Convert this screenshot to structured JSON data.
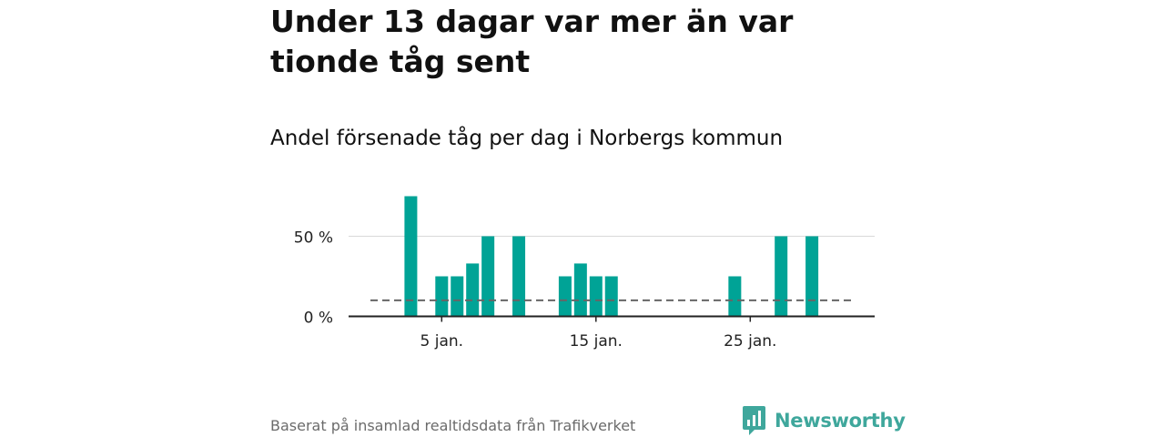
{
  "title": "Under 13 dagar var mer än var tionde tåg sent",
  "subtitle": "Andel försenade tåg per dag i Norbergs kommun",
  "source": "Baserat på insamlad realtidsdata från Trafikverket",
  "brand": {
    "name": "Newsworthy",
    "color": "#3fa79c",
    "icon": "newsworthy-logo-icon"
  },
  "chart_data": {
    "type": "bar",
    "x_unit": "day of January",
    "x": [
      3,
      5,
      6,
      7,
      8,
      10,
      13,
      14,
      15,
      16,
      24,
      27,
      29
    ],
    "values": [
      75,
      25,
      25,
      33,
      50,
      50,
      25,
      33,
      25,
      25,
      25,
      50,
      50
    ],
    "bar_color": "#00a396",
    "reference_line": {
      "value": 10,
      "style": "dashed",
      "color": "#666666"
    },
    "ylim": [
      0,
      75
    ],
    "y_ticks": [
      {
        "value": 0,
        "label": "0 %"
      },
      {
        "value": 50,
        "label": "50 %"
      }
    ],
    "x_ticks": [
      {
        "value": 5,
        "label": "5 jan."
      },
      {
        "value": 15,
        "label": "15 jan."
      },
      {
        "value": 25,
        "label": "25 jan."
      }
    ],
    "grid": "horizontal",
    "xlabel": "",
    "ylabel": ""
  }
}
